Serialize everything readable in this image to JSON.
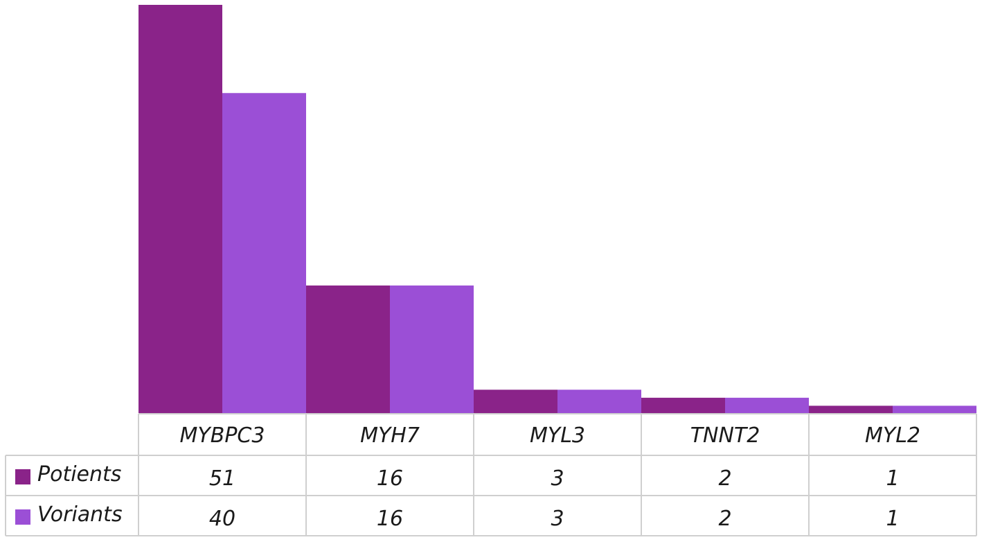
{
  "chart_data": {
    "type": "bar",
    "categories": [
      "MYBPC3",
      "MYH7",
      "MYL3",
      "TNNT2",
      "MYL2"
    ],
    "series": [
      {
        "name": "Potients",
        "values": [
          51,
          16,
          3,
          2,
          1
        ],
        "color": "#8a2389"
      },
      {
        "name": "Voriants",
        "values": [
          40,
          16,
          3,
          2,
          1
        ],
        "color": "#9b4fd6"
      }
    ],
    "title": "",
    "xlabel": "",
    "ylabel": "",
    "ylim": [
      0,
      51
    ],
    "grid": false,
    "legend": "data-table"
  }
}
